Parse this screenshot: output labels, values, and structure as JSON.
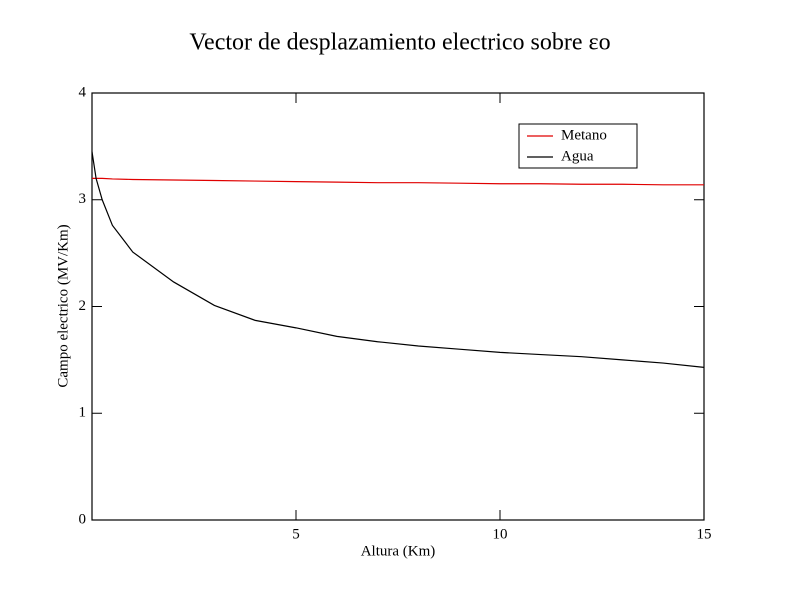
{
  "chart_data": {
    "type": "line",
    "title": "Vector de desplazamiento electrico sobre εo",
    "x_label": "Altura (Km)",
    "y_label": "Campo electrico (MV/Km)",
    "x": [
      0,
      0.1,
      0.25,
      0.5,
      1,
      2,
      3,
      4,
      5,
      6,
      7,
      8,
      9,
      10,
      11,
      12,
      13,
      14,
      15
    ],
    "series": [
      {
        "name": "Metano",
        "color": "#e00000",
        "values": [
          3.2,
          3.2,
          3.2,
          3.195,
          3.19,
          3.185,
          3.18,
          3.175,
          3.17,
          3.165,
          3.16,
          3.16,
          3.155,
          3.15,
          3.15,
          3.145,
          3.145,
          3.14,
          3.14
        ]
      },
      {
        "name": "Agua",
        "color": "#000000",
        "values": [
          3.45,
          3.2,
          3.0,
          2.76,
          2.51,
          2.23,
          2.01,
          1.87,
          1.8,
          1.72,
          1.67,
          1.63,
          1.6,
          1.57,
          1.55,
          1.53,
          1.5,
          1.47,
          1.43
        ]
      }
    ],
    "xlim": [
      0,
      15
    ],
    "xticks": [
      5,
      10,
      15
    ],
    "ylim": [
      0,
      4
    ],
    "yticks": [
      0,
      1,
      2,
      3,
      4
    ],
    "legend": "upper right"
  }
}
